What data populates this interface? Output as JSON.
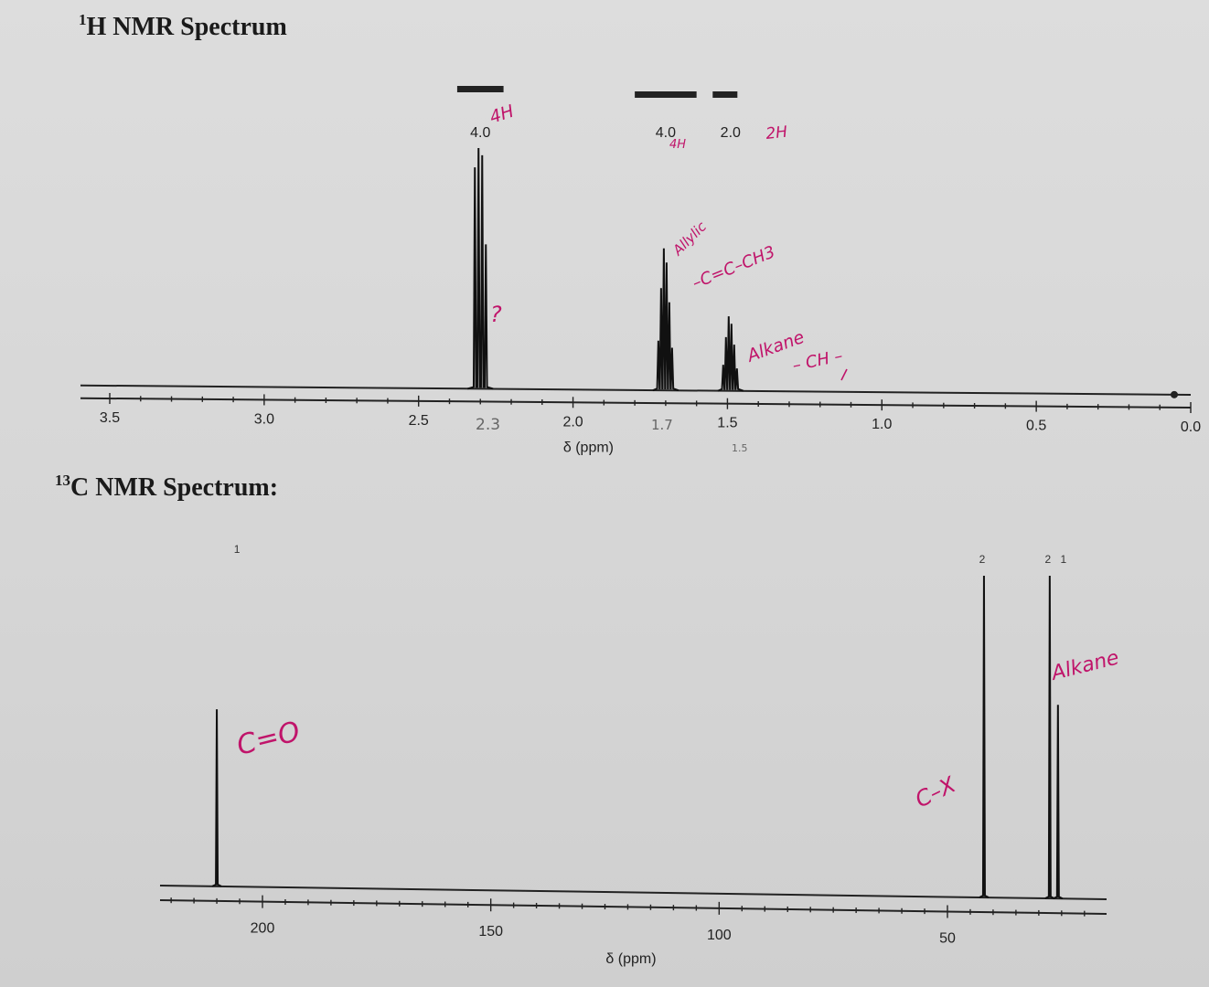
{
  "titles": {
    "h_nmr": "H NMR Spectrum",
    "h_nmr_sup": "1",
    "c_nmr": "C NMR Spectrum:",
    "c_nmr_sup": "13"
  },
  "chart_data": [
    {
      "type": "line",
      "title": "1H NMR Spectrum",
      "xlabel": "δ (ppm)",
      "ylabel": "",
      "xlim": [
        3.5,
        0.0
      ],
      "tick_labels": [
        "3.5",
        "3.0",
        "2.5",
        "2.0",
        "1.5",
        "1.0",
        "0.5",
        "0.0"
      ],
      "tick_values": [
        3.5,
        3.0,
        2.5,
        2.0,
        1.5,
        1.0,
        0.5,
        0.0
      ],
      "peaks": [
        {
          "shift": 2.3,
          "multiplicity": "triplet",
          "relative_height": 1.0,
          "integral": "4.0",
          "integral_width": 0.15
        },
        {
          "shift": 1.7,
          "multiplicity": "multiplet",
          "relative_height": 0.59,
          "integral": "4.0",
          "integral_width": 0.2
        },
        {
          "shift": 1.49,
          "multiplicity": "multiplet",
          "relative_height": 0.31,
          "integral": "2.0",
          "integral_width": 0.08
        }
      ],
      "reference_marker": 0.0,
      "grid": false
    },
    {
      "type": "line",
      "title": "13C NMR Spectrum:",
      "xlabel": "δ (ppm)",
      "ylabel": "",
      "xlim": [
        220,
        0
      ],
      "tick_labels": [
        "200",
        "150",
        "100",
        "50"
      ],
      "tick_values": [
        200,
        150,
        100,
        50
      ],
      "peaks": [
        {
          "shift": 210,
          "relative_height": 0.57,
          "count_label": "1"
        },
        {
          "shift": 42,
          "relative_height": 1.0,
          "count_label": "2"
        },
        {
          "shift": 27.6,
          "relative_height": 1.0,
          "count_label": "2"
        },
        {
          "shift": 25.8,
          "relative_height": 0.6,
          "count_label": "1"
        }
      ],
      "grid": false
    }
  ],
  "annotations": {
    "h_2_3_integral": "4H",
    "h_1_7_integral": "4H",
    "h_1_5_integral": "2H",
    "h_question": "?",
    "h_allylic": "Allylic",
    "h_allylic_struct": "–C=C–CH3",
    "h_alkane": "Alkane",
    "h_alkane_struct": "– CH –",
    "h_pencil_2_3": "2.3",
    "h_pencil_1_7": "1.7",
    "h_pencil_1_5": "1.5",
    "c_carbonyl": "C=O",
    "c_cx": "C–X",
    "c_alkane": "Alkane"
  },
  "colors": {
    "pen": "#c0146a",
    "spectrum": "#111111",
    "paper": "#dddddd"
  }
}
